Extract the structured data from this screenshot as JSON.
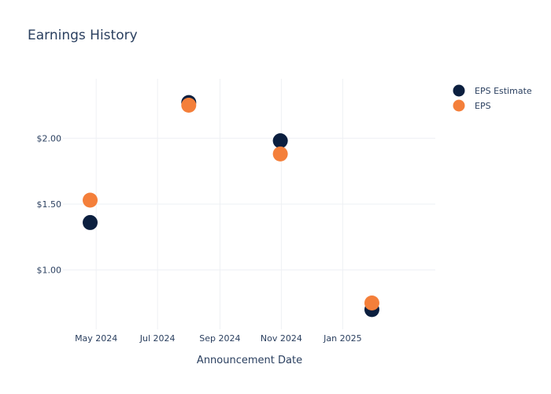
{
  "chart_data": {
    "type": "scatter",
    "title": "Earnings History",
    "xlabel": "Announcement Date",
    "ylabel": "",
    "x_axis_type": "date",
    "xlim": [
      "2024-03-29",
      "2025-04-03"
    ],
    "x_ticks": [
      {
        "date": "2024-05-01",
        "label": "May 2024"
      },
      {
        "date": "2024-07-01",
        "label": "Jul 2024"
      },
      {
        "date": "2024-09-01",
        "label": "Sep 2024"
      },
      {
        "date": "2024-11-01",
        "label": "Nov 2024"
      },
      {
        "date": "2025-01-01",
        "label": "Jan 2025"
      }
    ],
    "ylim": [
      0.55,
      2.45
    ],
    "y_ticks": [
      {
        "value": 1.0,
        "label": "$1.00"
      },
      {
        "value": 1.5,
        "label": "$1.50"
      },
      {
        "value": 2.0,
        "label": "$2.00"
      }
    ],
    "grid": true,
    "legend_position": "top-right",
    "series": [
      {
        "name": "EPS Estimate",
        "color": "#0b1f3f",
        "points": [
          {
            "x": "2024-04-25",
            "y": 1.36
          },
          {
            "x": "2024-08-01",
            "y": 2.27
          },
          {
            "x": "2024-10-31",
            "y": 1.98
          },
          {
            "x": "2025-01-30",
            "y": 0.7
          }
        ]
      },
      {
        "name": "EPS",
        "color": "#f47f3a",
        "points": [
          {
            "x": "2024-04-25",
            "y": 1.53
          },
          {
            "x": "2024-08-01",
            "y": 2.25
          },
          {
            "x": "2024-10-31",
            "y": 1.88
          },
          {
            "x": "2025-01-30",
            "y": 0.75
          }
        ]
      }
    ]
  }
}
